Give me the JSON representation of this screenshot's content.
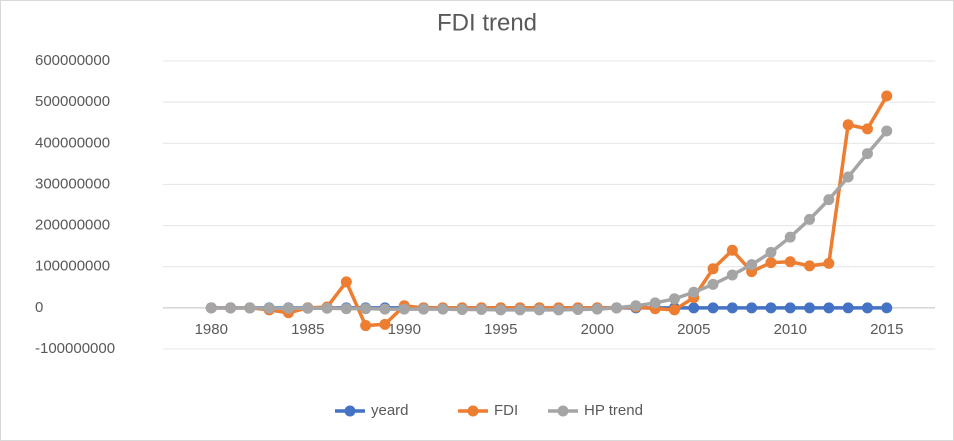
{
  "chart_data": {
    "type": "line",
    "title": "FDI trend",
    "x": [
      1980,
      1981,
      1982,
      1983,
      1984,
      1985,
      1986,
      1987,
      1988,
      1989,
      1990,
      1991,
      1992,
      1993,
      1994,
      1995,
      1996,
      1997,
      1998,
      1999,
      2000,
      2001,
      2002,
      2003,
      2004,
      2005,
      2006,
      2007,
      2008,
      2009,
      2010,
      2011,
      2012,
      2013,
      2014,
      2015
    ],
    "xlim": [
      1977.5,
      2017.5
    ],
    "xticks": [
      1980,
      1985,
      1990,
      1995,
      2000,
      2005,
      2010,
      2015
    ],
    "ylim": [
      -100000000,
      600000000
    ],
    "yticks": [
      -100000000,
      0,
      100000000,
      200000000,
      300000000,
      400000000,
      500000000,
      600000000
    ],
    "grid": true,
    "legend": "bottom",
    "series": [
      {
        "name": "yeard",
        "color": "#4472c4",
        "values": [
          1980,
          1981,
          1982,
          1983,
          1984,
          1985,
          1986,
          1987,
          1988,
          1989,
          1990,
          1991,
          1992,
          1993,
          1994,
          1995,
          1996,
          1997,
          1998,
          1999,
          2000,
          2001,
          2002,
          2003,
          2004,
          2005,
          2006,
          2007,
          2008,
          2009,
          2010,
          2011,
          2012,
          2013,
          2014,
          2015
        ]
      },
      {
        "name": "FDI",
        "color": "#ed7d31",
        "values": [
          0,
          0,
          0,
          -5000000,
          -12000000,
          0,
          2000000,
          63000000,
          -43000000,
          -40000000,
          5000000,
          0,
          0,
          0,
          0,
          0,
          0,
          0,
          0,
          0,
          0,
          0,
          2000000,
          -2000000,
          -5000000,
          25000000,
          95000000,
          140000000,
          88000000,
          110000000,
          112000000,
          102000000,
          108000000,
          445000000,
          435000000,
          515000000
        ]
      },
      {
        "name": "HP trend",
        "color": "#a5a5a5",
        "values": [
          0,
          0,
          0,
          -1000000,
          -1000000,
          -1000000,
          -1000000,
          -2000000,
          -2000000,
          -3000000,
          -3000000,
          -3000000,
          -3000000,
          -4000000,
          -4000000,
          -5000000,
          -5000000,
          -5000000,
          -5000000,
          -4000000,
          -3000000,
          0,
          5000000,
          12000000,
          22000000,
          38000000,
          57000000,
          80000000,
          105000000,
          135000000,
          172000000,
          215000000,
          263000000,
          318000000,
          375000000,
          430000000
        ]
      }
    ]
  }
}
